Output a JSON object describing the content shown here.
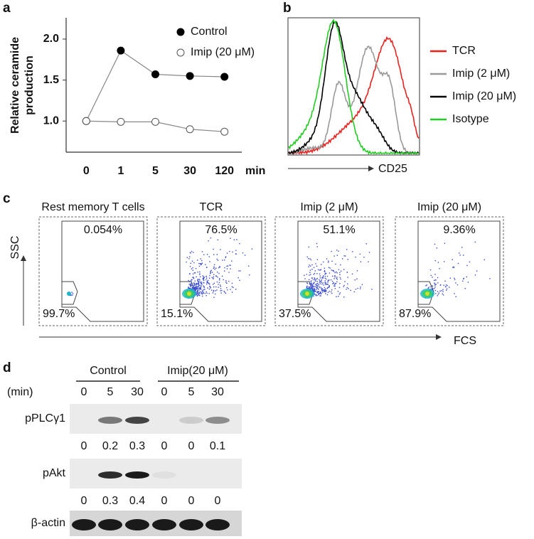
{
  "panel_labels": [
    "a",
    "b",
    "c",
    "d"
  ],
  "chart_data": {
    "type": "line",
    "y_label": [
      "Relative ceramide",
      "production"
    ],
    "x_label": "min",
    "categories": [
      "0",
      "1",
      "5",
      "30",
      "120"
    ],
    "series": [
      {
        "name": "Control",
        "color": "#000000",
        "marker": "filled",
        "values": [
          1.0,
          1.86,
          1.57,
          1.55,
          1.54
        ]
      },
      {
        "name": "Imip (20 μM)",
        "color": "#555555",
        "marker": "open",
        "values": [
          1.0,
          0.99,
          0.99,
          0.9,
          0.87
        ]
      }
    ],
    "ylim": [
      0.62,
      2.26
    ],
    "yticks": [
      {
        "value": 1,
        "label": "1.0"
      },
      {
        "value": 1.5,
        "label": "1.5"
      },
      {
        "value": 2,
        "label": "2.0"
      }
    ],
    "legend": "upper right",
    "grid": false
  },
  "histogram": {
    "x_label": "CD25",
    "series": [
      {
        "name": "TCR",
        "color": "#e8231f"
      },
      {
        "name": "Imip (2 μM)",
        "color": "#999999"
      },
      {
        "name": "Imip (20 μM)",
        "color": "#000000"
      },
      {
        "name": "Isotype",
        "color": "#22cc22"
      }
    ]
  },
  "flow": {
    "y_label": "SSC",
    "x_label": "FCS",
    "panels": [
      {
        "title": "Rest memory T cells",
        "upper": "0.054%",
        "lower": "99.7%"
      },
      {
        "title": "TCR",
        "upper": "76.5%",
        "lower": "15.1%"
      },
      {
        "title": "Imip (2 μM)",
        "upper": "51.1%",
        "lower": "37.5%"
      },
      {
        "title": "Imip (20 μM)",
        "upper": "9.36%",
        "lower": "87.9%"
      }
    ]
  },
  "blot": {
    "groups": [
      "Control",
      "Imip(20 μM)"
    ],
    "time_label": "(min)",
    "times": [
      "0",
      "5",
      "30",
      "0",
      "5",
      "30"
    ],
    "rows": [
      {
        "label": "pPLCγ1",
        "quant": [
          "0",
          "0.2",
          "0.3",
          "0",
          "0",
          "0.1"
        ]
      },
      {
        "label": "pAkt",
        "quant": [
          "0",
          "0.3",
          "0.4",
          "0",
          "0",
          "0"
        ]
      },
      {
        "label": "β-actin"
      }
    ]
  }
}
